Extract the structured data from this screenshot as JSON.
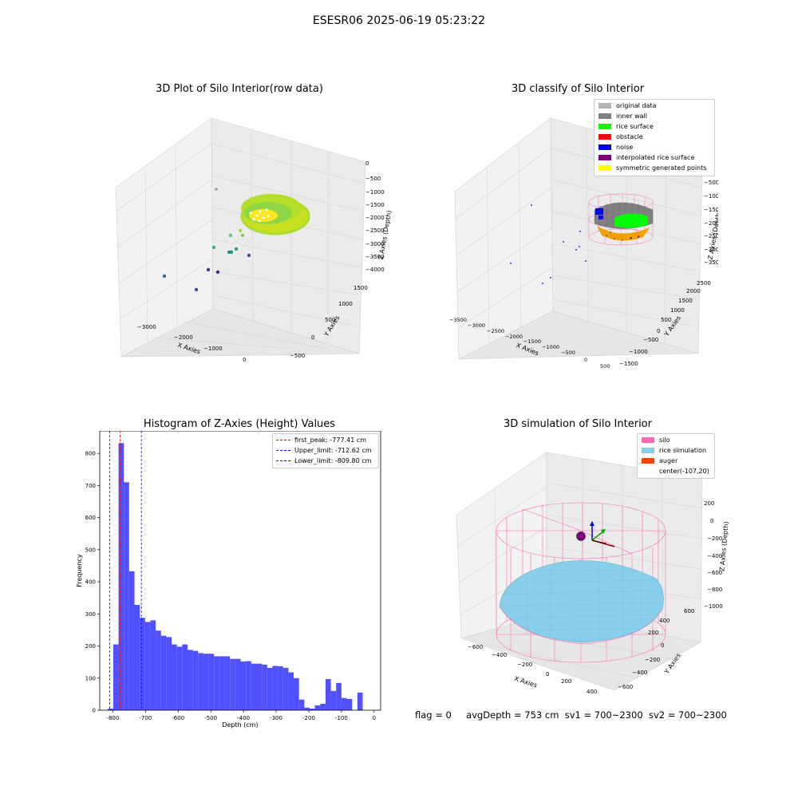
{
  "figure": {
    "suptitle": "ESESR06 2025-06-19 05:23:22",
    "status": {
      "flag": "flag = 0",
      "avg_depth": "avgDepth = 753 cm",
      "sv1": "sv1 = 700~2300",
      "sv2": "sv2 = 700~2300"
    }
  },
  "chart_data": [
    {
      "type": "scatter",
      "projection": "3d",
      "title": "3D Plot of Silo Interior(row data)",
      "xlabel": "X Axies",
      "ylabel": "Y Axies",
      "zlabel": "Z Axies (Depth)",
      "x_ticks": [
        "−3000",
        "−2000",
        "−1000",
        "0"
      ],
      "y_ticks": [
        "−500",
        "0",
        "500",
        "1000",
        "1500"
      ],
      "z_ticks": [
        "0",
        "−500",
        "−1000",
        "−1500",
        "−2000",
        "−2500",
        "−3000",
        "−3500",
        "−4000"
      ],
      "colormap": "viridis",
      "grid": true
    },
    {
      "type": "scatter",
      "projection": "3d",
      "title": "3D classify of Silo Interior",
      "xlabel": "X Axies",
      "ylabel": "Y Axies",
      "zlabel": "Z Axies (Depth)",
      "x_ticks": [
        "−3500",
        "−3000",
        "−2500",
        "−2000",
        "−1500",
        "−1000",
        "−500",
        "0",
        "500"
      ],
      "y_ticks": [
        "−1500",
        "−1000",
        "−500",
        "0",
        "500",
        "1000",
        "1500",
        "2000",
        "2500"
      ],
      "z_ticks": [
        "0",
        "−500",
        "−1000",
        "−1500",
        "−2000",
        "−2500",
        "−3000",
        "−3500"
      ],
      "legend_position": "top-right",
      "legend": [
        {
          "label": "original data",
          "color": "#b3b3b3"
        },
        {
          "label": "inner wall",
          "color": "#808080"
        },
        {
          "label": "rice surface",
          "color": "#00ff00"
        },
        {
          "label": "obstacle",
          "color": "#ff0000"
        },
        {
          "label": "noise",
          "color": "#0000ff"
        },
        {
          "label": "interpolated rice surface",
          "color": "#800080"
        },
        {
          "label": "symmetric generated points",
          "color": "#ffff00"
        }
      ],
      "grid": true
    },
    {
      "type": "bar",
      "title": "Histogram of Z-Axies (Height) Values",
      "xlabel": "Depth (cm)",
      "ylabel": "Frequency",
      "xlim": [
        -840,
        20
      ],
      "ylim": [
        0,
        870
      ],
      "x_ticks": [
        -800,
        -700,
        -600,
        -500,
        -400,
        -300,
        -200,
        -100,
        0
      ],
      "y_ticks": [
        0,
        100,
        200,
        300,
        400,
        500,
        600,
        700,
        800
      ],
      "bin_start": -815,
      "bin_width": 16.25,
      "values": [
        5,
        205,
        832,
        710,
        433,
        328,
        288,
        275,
        280,
        248,
        232,
        228,
        205,
        198,
        205,
        188,
        185,
        178,
        176,
        176,
        168,
        168,
        168,
        160,
        160,
        152,
        153,
        145,
        145,
        142,
        132,
        138,
        137,
        132,
        118,
        100,
        33,
        8,
        5,
        15,
        20,
        97,
        60,
        85,
        38,
        35,
        0,
        55
      ],
      "bar_color": "#5050ff",
      "reference_lines": [
        {
          "label": "first_peak: -777.41 cm",
          "x": -777.41,
          "color": "#ff0000"
        },
        {
          "label": "Upper_limit: -712.62 cm",
          "x": -712.62,
          "color": "#0000ff"
        },
        {
          "label": "Lower_limit: -809.80 cm",
          "x": -809.8,
          "color": "#0000ff"
        }
      ],
      "legend_position": "top-right",
      "grid": false
    },
    {
      "type": "surface",
      "projection": "3d",
      "title": "3D simulation of Silo Interior",
      "xlabel": "X Axies",
      "ylabel": "Y Axies",
      "zlabel": "Z Axies (Depth)",
      "x_ticks": [
        "−600",
        "−400",
        "−200",
        "0",
        "200",
        "400"
      ],
      "y_ticks": [
        "−600",
        "−400",
        "−200",
        "0",
        "200",
        "400",
        "600"
      ],
      "z_ticks": [
        "200",
        "0",
        "−200",
        "−400",
        "−600",
        "−800",
        "−1000"
      ],
      "legend_position": "top-right",
      "legend": [
        {
          "label": "silo",
          "color": "#ff69b4"
        },
        {
          "label": "rice simulation",
          "color": "#87ceeb"
        },
        {
          "label": "auger",
          "color": "#ff4500"
        },
        {
          "label": "center(-107,20)",
          "color": ""
        }
      ],
      "grid": true
    }
  ]
}
